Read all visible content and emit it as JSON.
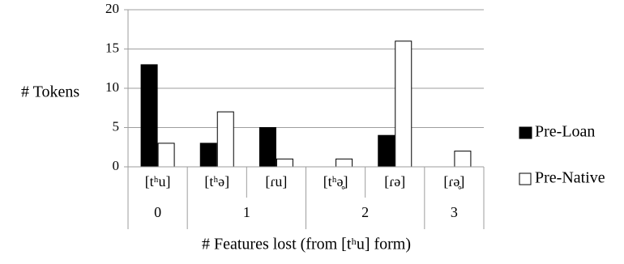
{
  "chart_data": {
    "type": "bar",
    "title": "",
    "ylabel": "# Tokens",
    "xlabel": "# Features lost (from [tʰu] form)",
    "ylim": [
      0,
      20
    ],
    "yticks": [
      0,
      5,
      10,
      15,
      20
    ],
    "grid": "horizontal",
    "legend_position": "right",
    "categories": [
      "[tʰu]",
      "[tʰə]",
      "[ɾu]",
      "[tʰə̥]",
      "[ɾə]",
      "[ɾə̥]"
    ],
    "groups": [
      {
        "label": "0",
        "span": 1
      },
      {
        "label": "1",
        "span": 2
      },
      {
        "label": "2",
        "span": 2
      },
      {
        "label": "3",
        "span": 1
      }
    ],
    "series": [
      {
        "name": "Pre-Loan",
        "color": "#000000",
        "values": [
          13,
          3,
          5,
          0,
          4,
          0
        ]
      },
      {
        "name": "Pre-Native",
        "color": "#ffffff",
        "values": [
          3,
          7,
          1,
          1,
          16,
          2
        ]
      }
    ]
  }
}
